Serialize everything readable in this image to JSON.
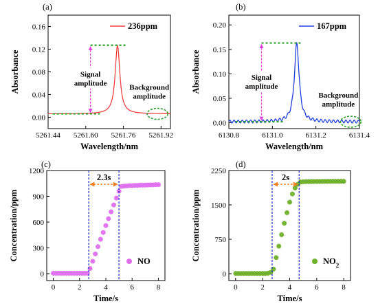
{
  "chart_data": [
    {
      "id": "a",
      "panel_label": "(a)",
      "type": "line",
      "xlabel": "Wavelength/nm",
      "ylabel": "Absorbance",
      "xlim": [
        5261.44,
        5261.96
      ],
      "ylim": [
        -0.02,
        0.18
      ],
      "xticks": [
        5261.44,
        5261.6,
        5261.76,
        5261.92
      ],
      "xtick_labels": [
        "5261.44",
        "5261.60",
        "5261.76",
        "5261.92"
      ],
      "yticks": [
        0.0,
        0.04,
        0.08,
        0.12,
        0.16
      ],
      "ytick_labels": [
        "0.00",
        "0.04",
        "0.08",
        "0.12",
        "0.16"
      ],
      "series": [
        {
          "name": "236ppm",
          "color": "#f04040",
          "peak_x": 5261.735,
          "peak_y": 0.127,
          "width": 0.012,
          "baseline": 0.006
        }
      ],
      "legend_position": "top-right",
      "annotations": {
        "signal_label_1": "Signal",
        "signal_label_2": "amplitude",
        "background_label_1": "Background",
        "background_label_2": "amplitude",
        "signal_top_y": 0.127,
        "signal_bottom_y": 0.006,
        "baseline_line_x": [
          5261.46,
          5261.66
        ],
        "peak_line_x": [
          5261.62,
          5261.77
        ],
        "signal_arrow_x": 5261.62,
        "background_center_x": 5261.905,
        "background_center_y": 0.006
      },
      "colors": {
        "dashed": "#2ca02c",
        "arrow": "#e040e0"
      }
    },
    {
      "id": "b",
      "panel_label": "(b)",
      "type": "line",
      "xlabel": "Wavelength/nm",
      "ylabel": "Absorbance",
      "xlim": [
        6130.8,
        6131.4
      ],
      "ylim": [
        -0.012,
        0.22
      ],
      "xticks": [
        6130.8,
        6131.0,
        6131.2,
        6131.4
      ],
      "xtick_labels": [
        "6130.8",
        "6131.0",
        "6131.2",
        "6131.4"
      ],
      "yticks": [
        0.0,
        0.05,
        0.1,
        0.15,
        0.2
      ],
      "ytick_labels": [
        "0.00",
        "0.05",
        "0.10",
        "0.15",
        "0.20"
      ],
      "series": [
        {
          "name": "167ppm",
          "color": "#1f3fe0",
          "peak_x": 6131.112,
          "peak_y": 0.163,
          "width": 0.013,
          "baseline": 0.002
        }
      ],
      "legend_position": "top-right",
      "annotations": {
        "signal_label_1": "Signal",
        "signal_label_2": "amplitude",
        "background_label_1": "Background",
        "background_label_2": "amplitude",
        "signal_top_y": 0.163,
        "signal_bottom_y": 0.002,
        "baseline_line_x": [
          6130.83,
          6131.05
        ],
        "peak_line_x": [
          6130.95,
          6131.13
        ],
        "signal_arrow_x": 6130.95,
        "background_center_x": 6131.36,
        "background_center_y": 0.002
      },
      "colors": {
        "dashed": "#2ca02c",
        "arrow": "#e040e0"
      }
    },
    {
      "id": "c",
      "panel_label": "(c)",
      "type": "scatter",
      "xlabel": "Time/s",
      "ylabel": "Concentration/ppm",
      "xlim": [
        -0.5,
        8.5
      ],
      "ylim": [
        -80,
        1200
      ],
      "xticks": [
        0,
        2,
        4,
        6,
        8
      ],
      "xtick_labels": [
        "0",
        "2",
        "4",
        "6",
        "8"
      ],
      "yticks": [
        0,
        300,
        600,
        900,
        1200
      ],
      "ytick_labels": [
        "0",
        "300",
        "600",
        "900",
        "1200"
      ],
      "legend": "NO",
      "legend_sub": "",
      "legend_position": "bottom-right",
      "marker_color": "#e070f0",
      "x": [
        0.0,
        0.2,
        0.4,
        0.6,
        0.8,
        1.0,
        1.2,
        1.4,
        1.6,
        1.8,
        2.0,
        2.2,
        2.4,
        2.6,
        2.8,
        3.0,
        3.2,
        3.4,
        3.6,
        3.8,
        4.0,
        4.2,
        4.4,
        4.6,
        4.8,
        5.0,
        5.2,
        5.4,
        5.6,
        5.8,
        6.0,
        6.2,
        6.4,
        6.6,
        6.8,
        7.0,
        7.2,
        7.4,
        7.6,
        7.8,
        8.0
      ],
      "y": [
        5,
        5,
        5,
        5,
        5,
        5,
        5,
        5,
        5,
        5,
        5,
        5,
        5,
        5,
        60,
        145,
        230,
        315,
        400,
        480,
        560,
        640,
        720,
        800,
        880,
        960,
        1015,
        1020,
        1022,
        1025,
        1025,
        1027,
        1027,
        1030,
        1030,
        1030,
        1032,
        1033,
        1033,
        1035,
        1035
      ],
      "annotation": {
        "text": "2.3s",
        "t_start": 2.7,
        "t_end": 5.0,
        "arrow_y": 1030,
        "dash_color": "#1a2ad0",
        "arrow_color": "#f08020"
      }
    },
    {
      "id": "d",
      "panel_label": "(d)",
      "type": "scatter",
      "xlabel": "Time/s",
      "ylabel": "Concentration/ppm",
      "xlim": [
        -0.5,
        8.5
      ],
      "ylim": [
        -150,
        2250
      ],
      "xticks": [
        0,
        2,
        4,
        6,
        8
      ],
      "xtick_labels": [
        "0",
        "2",
        "4",
        "6",
        "8"
      ],
      "yticks": [
        0,
        750,
        1500,
        2250
      ],
      "ytick_labels": [
        "0",
        "750",
        "1500",
        "2250"
      ],
      "legend": "NO",
      "legend_sub": "2",
      "legend_position": "bottom-right",
      "marker_color": "#6fb02a",
      "x": [
        0.0,
        0.2,
        0.4,
        0.6,
        0.8,
        1.0,
        1.2,
        1.4,
        1.6,
        1.8,
        2.0,
        2.2,
        2.4,
        2.6,
        2.8,
        3.0,
        3.2,
        3.4,
        3.6,
        3.8,
        4.0,
        4.2,
        4.4,
        4.6,
        4.8,
        5.0,
        5.2,
        5.4,
        5.6,
        5.8,
        6.0,
        6.2,
        6.4,
        6.6,
        6.8,
        7.0,
        7.2,
        7.4,
        7.6,
        7.8,
        8.0
      ],
      "y": [
        5,
        5,
        5,
        5,
        5,
        5,
        5,
        5,
        5,
        5,
        5,
        5,
        10,
        30,
        100,
        350,
        600,
        850,
        1100,
        1330,
        1560,
        1740,
        1870,
        1950,
        2000,
        2005,
        2008,
        2010,
        2010,
        2012,
        2012,
        2013,
        2013,
        2014,
        2014,
        2015,
        2015,
        2015,
        2015,
        2015,
        2015
      ],
      "annotation": {
        "text": "2s",
        "t_start": 2.7,
        "t_end": 4.7,
        "arrow_y": 2030,
        "dash_color": "#1a2ad0",
        "arrow_color": "#f08020"
      }
    }
  ]
}
